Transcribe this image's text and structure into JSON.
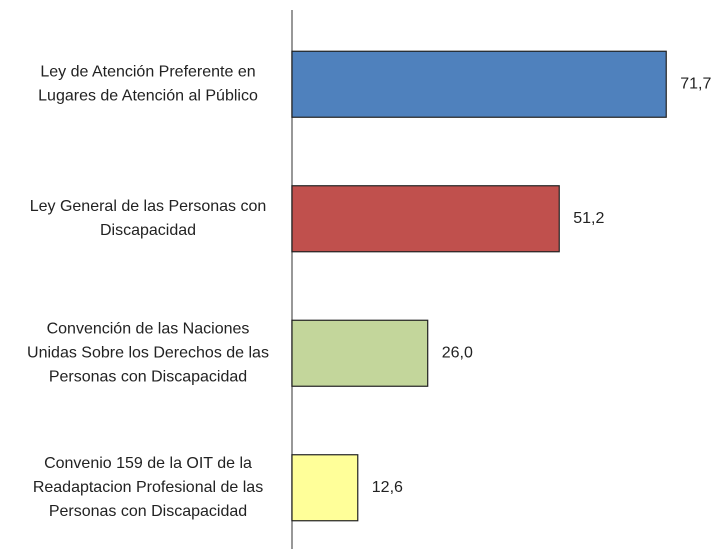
{
  "chart_data": {
    "type": "bar",
    "orientation": "horizontal",
    "categories": [
      [
        "Ley de Atención Preferente en",
        "Lugares de Atención al Público"
      ],
      [
        "Ley General de las Personas con",
        "Discapacidad"
      ],
      [
        "Convención de las Naciones",
        "Unidas Sobre los Derechos de las",
        "Personas con Discapacidad"
      ],
      [
        "Convenio 159 de la OIT de la",
        "Readaptacion Profesional de las",
        "Personas con Discapacidad"
      ]
    ],
    "values": [
      71.7,
      51.2,
      26.0,
      12.6
    ],
    "value_labels": [
      "71,7",
      "51,2",
      "26,0",
      "12,6"
    ],
    "colors": [
      "#4f81bd",
      "#c0504d",
      "#c3d69b",
      "#ffff99"
    ],
    "xlim": [
      0,
      82
    ]
  }
}
